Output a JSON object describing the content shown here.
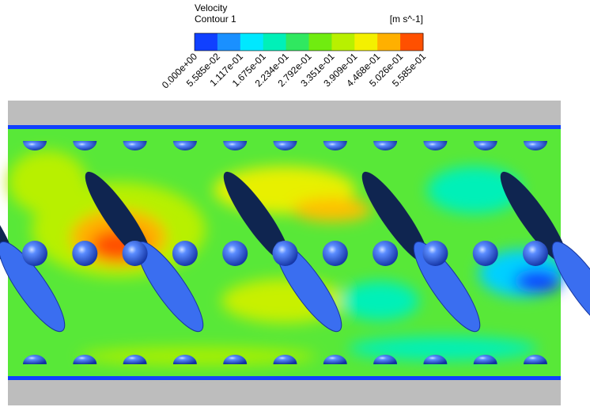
{
  "legend": {
    "title": "Velocity",
    "subtitle": "Contour 1",
    "unit": "[m s^-1]",
    "colors": [
      "#1040ff",
      "#1a90ff",
      "#00e8ff",
      "#00f0b8",
      "#30e860",
      "#70ec10",
      "#b8f000",
      "#f4f000",
      "#ffb000",
      "#ff5000"
    ],
    "labels": [
      "0.000e+00",
      "5.585e-02",
      "1.117e-01",
      "1.675e-01",
      "2.234e-01",
      "2.792e-01",
      "3.351e-01",
      "3.909e-01",
      "4.468e-01",
      "5.026e-01",
      "5.585e-01"
    ]
  }
}
